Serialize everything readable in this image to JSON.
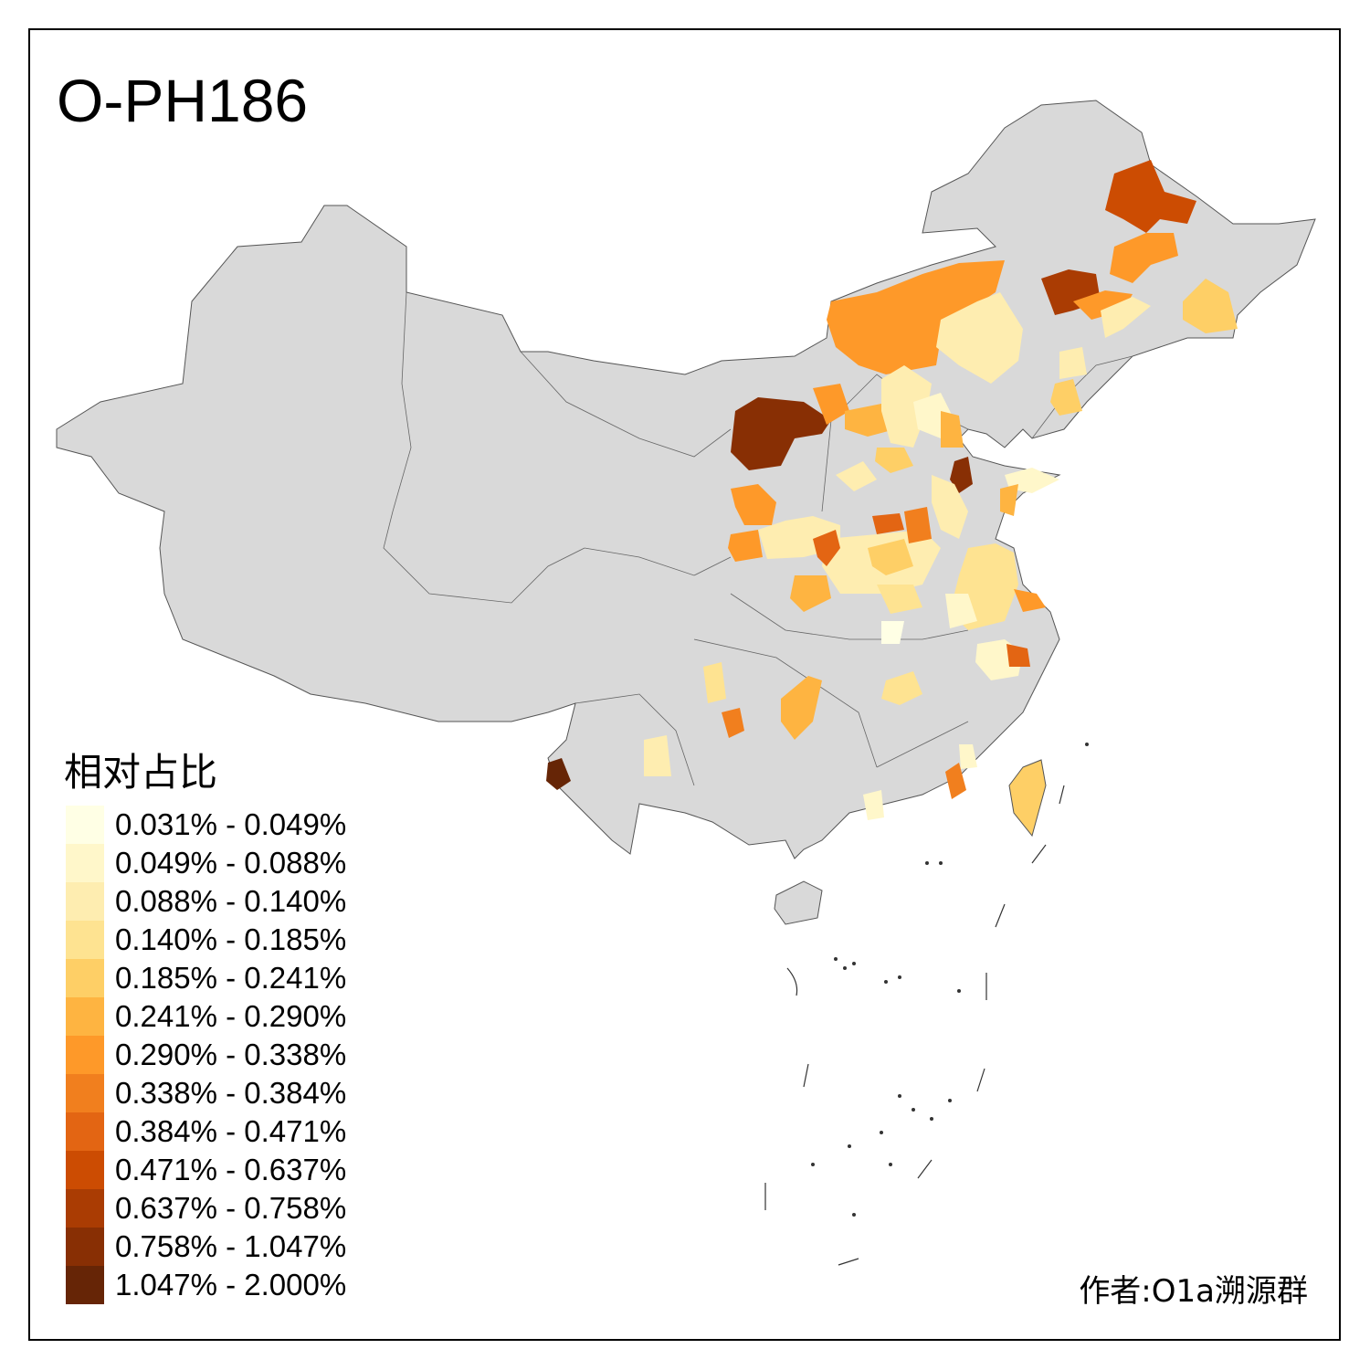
{
  "title": "O-PH186",
  "legend": {
    "title": "相对占比",
    "items": [
      {
        "label": "0.031% - 0.049%",
        "color": "#FFFFE5"
      },
      {
        "label": "0.049% - 0.088%",
        "color": "#FFF7CA"
      },
      {
        "label": "0.088% - 0.140%",
        "color": "#FEEDB0"
      },
      {
        "label": "0.140% - 0.185%",
        "color": "#FEE391"
      },
      {
        "label": "0.185% - 0.241%",
        "color": "#FECF66"
      },
      {
        "label": "0.241% - 0.290%",
        "color": "#FEB441"
      },
      {
        "label": "0.290% - 0.338%",
        "color": "#FE9929"
      },
      {
        "label": "0.338% - 0.384%",
        "color": "#F17F1E"
      },
      {
        "label": "0.384% - 0.471%",
        "color": "#E36513"
      },
      {
        "label": "0.471% - 0.637%",
        "color": "#CC4C02"
      },
      {
        "label": "0.637% - 0.758%",
        "color": "#AA3C03"
      },
      {
        "label": "0.758% - 1.047%",
        "color": "#882F04"
      },
      {
        "label": "1.047% - 2.000%",
        "color": "#662506"
      }
    ]
  },
  "colors": {
    "no_data": "#D9D9D9",
    "border": "#555555"
  },
  "author": "作者:O1a溯源群"
}
